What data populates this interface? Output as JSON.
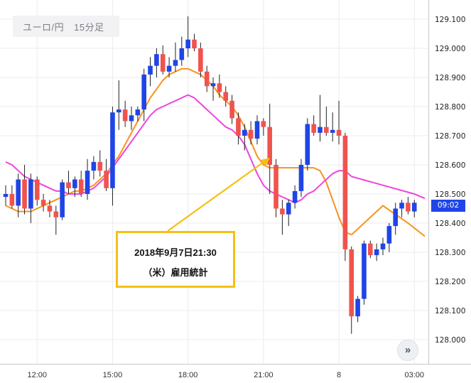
{
  "title": {
    "pair": "ユーロ/円",
    "interval": "15分足"
  },
  "annotation": {
    "line1": "2018年9月7日21:30",
    "line2": "（米）雇用統計"
  },
  "current_price_label": "09:02",
  "nav_button_icon": "double-chevron-right-icon",
  "colors": {
    "up": "#1f45e6",
    "down": "#f0534e",
    "ma_short": "#f7931e",
    "ma_long": "#ee44dd",
    "annotation": "#f5c016",
    "grid": "#ececf0"
  },
  "chart_data": {
    "type": "candlestick",
    "title": "",
    "ylim": [
      127.95,
      129.15
    ],
    "y_ticks": [
      128.0,
      128.1,
      128.2,
      128.3,
      128.4,
      128.5,
      128.6,
      128.7,
      128.8,
      128.9,
      129.0,
      129.1
    ],
    "y_tick_labels": [
      "128.000",
      "128.100",
      "128.200",
      "128.300",
      "128.400",
      "128.500",
      "128.600",
      "128.700",
      "128.800",
      "128.900",
      "129.000",
      "129.100"
    ],
    "x_tick_labels": [
      {
        "label": "12:00",
        "index": 5
      },
      {
        "label": "15:00",
        "index": 17
      },
      {
        "label": "18:00",
        "index": 29
      },
      {
        "label": "21:00",
        "index": 41
      },
      {
        "label": "8",
        "index": 53
      },
      {
        "label": "03:00",
        "index": 65
      }
    ],
    "series": [
      {
        "name": "candles",
        "ohlc": [
          [
            128.49,
            128.53,
            128.46,
            128.5
          ],
          [
            128.5,
            128.53,
            128.45,
            128.46
          ],
          [
            128.46,
            128.57,
            128.42,
            128.55
          ],
          [
            128.55,
            128.6,
            128.43,
            128.45
          ],
          [
            128.45,
            128.57,
            128.4,
            128.55
          ],
          [
            128.55,
            128.56,
            128.46,
            128.48
          ],
          [
            128.48,
            128.5,
            128.44,
            128.46
          ],
          [
            128.46,
            128.48,
            128.42,
            128.44
          ],
          [
            128.44,
            128.46,
            128.36,
            128.42
          ],
          [
            128.42,
            128.55,
            128.41,
            128.54
          ],
          [
            128.54,
            128.58,
            128.5,
            128.52
          ],
          [
            128.52,
            128.56,
            128.49,
            128.55
          ],
          [
            128.55,
            128.58,
            128.49,
            128.5
          ],
          [
            128.5,
            128.62,
            128.48,
            128.58
          ],
          [
            128.58,
            128.63,
            128.55,
            128.61
          ],
          [
            128.61,
            128.65,
            128.56,
            128.58
          ],
          [
            128.58,
            128.62,
            128.51,
            128.52
          ],
          [
            128.52,
            128.8,
            128.46,
            128.78
          ],
          [
            128.78,
            128.89,
            128.72,
            128.79
          ],
          [
            128.79,
            128.82,
            128.73,
            128.75
          ],
          [
            128.75,
            128.8,
            128.72,
            128.77
          ],
          [
            128.77,
            128.8,
            128.75,
            128.79
          ],
          [
            128.79,
            128.93,
            128.75,
            128.91
          ],
          [
            128.91,
            128.97,
            128.87,
            128.94
          ],
          [
            128.94,
            129.0,
            128.9,
            128.98
          ],
          [
            128.98,
            129.01,
            128.91,
            128.92
          ],
          [
            128.92,
            128.97,
            128.9,
            128.94
          ],
          [
            128.94,
            129.02,
            128.92,
            128.96
          ],
          [
            128.96,
            129.04,
            128.94,
            129.0
          ],
          [
            129.0,
            129.11,
            128.97,
            129.03
          ],
          [
            129.03,
            129.05,
            128.99,
            129.0
          ],
          [
            129.0,
            129.02,
            128.9,
            128.92
          ],
          [
            128.92,
            128.94,
            128.85,
            128.87
          ],
          [
            128.87,
            128.9,
            128.82,
            128.88
          ],
          [
            128.88,
            128.91,
            128.83,
            128.85
          ],
          [
            128.85,
            128.87,
            128.8,
            128.82
          ],
          [
            128.82,
            128.84,
            128.74,
            128.76
          ],
          [
            128.76,
            128.78,
            128.67,
            128.7
          ],
          [
            128.7,
            128.74,
            128.65,
            128.72
          ],
          [
            128.72,
            128.75,
            128.67,
            128.69
          ],
          [
            128.69,
            128.77,
            128.67,
            128.75
          ],
          [
            128.75,
            128.76,
            128.7,
            128.73
          ],
          [
            128.73,
            128.81,
            128.5,
            128.6
          ],
          [
            128.6,
            128.62,
            128.42,
            128.45
          ],
          [
            128.45,
            128.48,
            128.36,
            128.43
          ],
          [
            128.43,
            128.48,
            128.39,
            128.47
          ],
          [
            128.47,
            128.53,
            128.45,
            128.51
          ],
          [
            128.51,
            128.62,
            128.49,
            128.6
          ],
          [
            128.6,
            128.76,
            128.58,
            128.74
          ],
          [
            128.74,
            128.77,
            128.7,
            128.71
          ],
          [
            128.71,
            128.84,
            128.68,
            128.73
          ],
          [
            128.73,
            128.8,
            128.7,
            128.71
          ],
          [
            128.71,
            128.78,
            128.68,
            128.72
          ],
          [
            128.72,
            128.82,
            128.67,
            128.7
          ],
          [
            128.7,
            128.71,
            128.27,
            128.31
          ],
          [
            128.31,
            128.32,
            128.02,
            128.08
          ],
          [
            128.08,
            128.15,
            128.06,
            128.14
          ],
          [
            128.14,
            128.34,
            128.12,
            128.33
          ],
          [
            128.33,
            128.34,
            128.28,
            128.29
          ],
          [
            128.29,
            128.33,
            128.27,
            128.31
          ],
          [
            128.31,
            128.35,
            128.29,
            128.33
          ],
          [
            128.33,
            128.4,
            128.3,
            128.39
          ],
          [
            128.39,
            128.47,
            128.36,
            128.45
          ],
          [
            128.45,
            128.48,
            128.42,
            128.47
          ],
          [
            128.47,
            128.49,
            128.43,
            128.44
          ],
          [
            128.44,
            128.48,
            128.42,
            128.47
          ]
        ]
      },
      {
        "name": "ma_short",
        "values": [
          128.46,
          128.45,
          128.44,
          128.44,
          128.44,
          128.45,
          128.46,
          128.47,
          128.48,
          128.49,
          128.5,
          128.51,
          128.51,
          128.52,
          128.53,
          128.55,
          128.57,
          128.6,
          128.63,
          128.67,
          128.71,
          128.75,
          128.79,
          128.83,
          128.86,
          128.89,
          128.91,
          128.92,
          128.93,
          128.93,
          128.92,
          128.91,
          128.89,
          128.87,
          128.84,
          128.82,
          128.8,
          128.77,
          128.73,
          128.68,
          128.63,
          128.6,
          128.59,
          128.59,
          128.59,
          128.59,
          128.59,
          128.59,
          128.59,
          128.59,
          128.58,
          128.54,
          128.48,
          128.42,
          128.37,
          128.36
        ],
        "start_index": 0
      },
      {
        "name": "ma_long",
        "values": [
          128.61,
          128.6,
          128.58,
          128.56,
          128.55,
          128.54,
          128.53,
          128.52,
          128.51,
          128.51,
          128.5,
          128.5,
          128.5,
          128.51,
          128.52,
          128.54,
          128.56,
          128.59,
          128.62,
          128.65,
          128.68,
          128.71,
          128.74,
          128.77,
          128.79,
          128.8,
          128.81,
          128.82,
          128.83,
          128.84,
          128.83,
          128.81,
          128.79,
          128.77,
          128.75,
          128.73,
          128.72,
          128.7,
          128.67,
          128.62,
          128.57,
          128.53,
          128.51,
          128.5,
          128.49,
          128.48,
          128.47,
          128.48,
          128.5,
          128.51,
          128.53,
          128.55,
          128.57,
          128.58,
          128.58,
          128.56
        ],
        "start_index": 0
      }
    ]
  }
}
